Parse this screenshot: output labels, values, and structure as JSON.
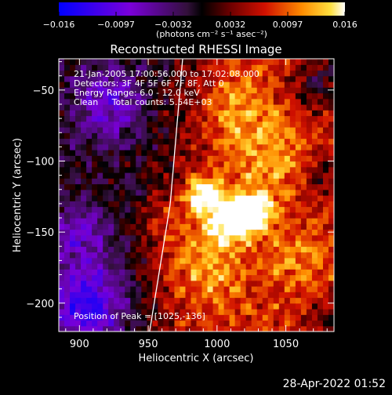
{
  "footer_datetime": "28-Apr-2022 01:52",
  "colorbar": {
    "ticks": [
      "−0.016",
      "−0.0097",
      "−0.0032",
      "0.0032",
      "0.0097",
      "0.016"
    ],
    "unit_label": "(photons cm⁻² s⁻¹ asec⁻²)",
    "range": [
      -0.016,
      0.016
    ]
  },
  "chart_data": {
    "type": "heatmap",
    "title": "Reconstructed RHESSI Image",
    "xlabel": "Heliocentric X (arcsec)",
    "ylabel": "Heliocentric Y (arcsec)",
    "xlim": [
      885,
      1085
    ],
    "ylim": [
      -220,
      -28
    ],
    "x_ticks": [
      900,
      950,
      1000,
      1050
    ],
    "y_ticks": [
      -50,
      -100,
      -150,
      -200
    ],
    "info_lines": [
      "21-Jan-2005 17:00:56.000 to 17:02:08.000",
      "Detectors: 3F 4F 5F 6F 7F 8F, Att 0",
      "Energy Range: 6.0 - 12.0 keV",
      "Clean     Total counts: 5.54E+03"
    ],
    "peak_label": "Position of Peak = [1025,-136]",
    "peak": [
      1025,
      -136
    ],
    "value_range": [
      -0.016,
      0.016
    ],
    "peak_value": 0.016,
    "bright_regions": [
      {
        "x": 1025,
        "y": -136,
        "value": 0.016
      },
      {
        "x": 990,
        "y": -124,
        "value": 0.013
      },
      {
        "x": 1005,
        "y": -145,
        "value": 0.009
      }
    ],
    "solar_limb": [
      [
        951,
        -220
      ],
      [
        966,
        -130
      ],
      [
        975,
        -28
      ]
    ]
  }
}
